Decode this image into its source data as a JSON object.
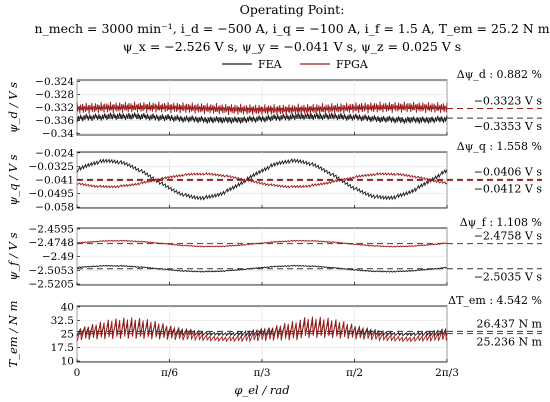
{
  "header": {
    "line1": "Operating Point:",
    "line2": "n_mech = 3000 min⁻¹, i_d = −500 A, i_q = −100 A, i_f = 1.5 A, T_em = 25.2 N m",
    "line3": "ψ_x = −2.526 V s, ψ_y = −0.041 V s, ψ_z = 0.025 V s"
  },
  "colors": {
    "fea": "#1a1a1a",
    "fpga": "#9b1b1b",
    "fea_mean": "#333333",
    "fpga_mean": "#9b1b1b"
  },
  "chart_data": [
    {
      "type": "line",
      "id": "psi_d",
      "ylabel": "ψ_d / V s",
      "yticks": [
        -0.324,
        -0.328,
        -0.332,
        -0.336,
        -0.34
      ],
      "ytick_labels": [
        "−0.324",
        "−0.328",
        "−0.332",
        "−0.336",
        "−0.34"
      ],
      "ylim": [
        -0.3405,
        -0.3235
      ],
      "x": "phi_el (rad), 0 to 2π/3",
      "xlim": [
        0,
        2.0944
      ],
      "legend": {
        "position": "top",
        "entries": [
          "FEA",
          "FPGA"
        ]
      },
      "series": [
        {
          "name": "FEA",
          "mean": -0.3353,
          "ripple": "high-frequency sawtooth ±0.0015 around mean"
        },
        {
          "name": "FPGA",
          "mean": -0.3323,
          "ripple": "high-frequency sawtooth ±0.002 around mean"
        }
      ],
      "annotations": {
        "delta": "Δψ_d : 0.882 %",
        "fpga_mean_label": "−0.3323 V s",
        "fea_mean_label": "−0.3353 V s"
      }
    },
    {
      "type": "line",
      "id": "psi_q",
      "ylabel": "ψ_q / V s",
      "yticks": [
        -0.024,
        -0.0325,
        -0.041,
        -0.0495,
        -0.058
      ],
      "ytick_labels": [
        "−0.024",
        "−0.0325",
        "−0.041",
        "−0.0495",
        "−0.058"
      ],
      "ylim": [
        -0.0585,
        -0.0235
      ],
      "series": [
        {
          "name": "FEA",
          "mean": -0.0406,
          "ripple": "sinusoid amplitude ≈0.012, two periods"
        },
        {
          "name": "FPGA",
          "mean": -0.0412,
          "ripple": "sinusoid amplitude ≈0.004, inverted"
        }
      ],
      "annotations": {
        "delta": "Δψ_q : 1.558 %",
        "fea_mean_label": "−0.0406 V s",
        "fpga_mean_label": "−0.0412 V s"
      }
    },
    {
      "type": "line",
      "id": "psi_f",
      "ylabel": "ψ_f / V s",
      "yticks": [
        -2.4595,
        -2.4748,
        -2.49,
        -2.5053,
        -2.5205
      ],
      "ytick_labels": [
        "−2.4595",
        "−2.4748",
        "−2.49",
        "−2.5053",
        "−2.5205"
      ],
      "ylim": [
        -2.5215,
        -2.4585
      ],
      "series": [
        {
          "name": "FEA",
          "mean": -2.5035,
          "ripple": "sinusoid amplitude ≈0.003"
        },
        {
          "name": "FPGA",
          "mean": -2.4758,
          "ripple": "sinusoid amplitude ≈0.003"
        }
      ],
      "annotations": {
        "delta": "Δψ_f : 1.108 %",
        "fpga_mean_label": "−2.4758 V s",
        "fea_mean_label": "−2.5035 V s"
      }
    },
    {
      "type": "line",
      "id": "T_em",
      "ylabel": "T_em / N m",
      "yticks": [
        40,
        32.5,
        25,
        17.5,
        10
      ],
      "ytick_labels": [
        "40",
        "32.5",
        "25",
        "17.5",
        "10"
      ],
      "ylim": [
        9.5,
        40.5
      ],
      "xticks": [
        0,
        0.5236,
        1.0472,
        1.5708,
        2.0944
      ],
      "xtick_labels": [
        "0",
        "π/6",
        "π/3",
        "π/2",
        "2π/3"
      ],
      "xlabel": "φ_el / rad",
      "series": [
        {
          "name": "FEA",
          "mean": 26.437,
          "ripple": "sawtooth ±4 with envelope"
        },
        {
          "name": "FPGA",
          "mean": 25.236,
          "ripple": "sawtooth ±6 with envelope"
        }
      ],
      "annotations": {
        "delta": "ΔT_em : 4.542 %",
        "fea_mean_label": "26.437 N m",
        "fpga_mean_label": "25.236 N m"
      }
    }
  ]
}
